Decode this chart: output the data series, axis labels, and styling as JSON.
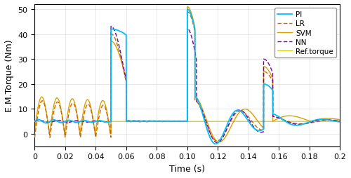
{
  "title": "",
  "xlabel": "Time (s)",
  "ylabel": "E.M.Torque (Nm)",
  "xlim": [
    0,
    0.2
  ],
  "ylim": [
    -5,
    52
  ],
  "yticks": [
    0,
    10,
    20,
    30,
    40,
    50
  ],
  "xticks": [
    0,
    0.02,
    0.04,
    0.06,
    0.08,
    0.1,
    0.12,
    0.14,
    0.16,
    0.18,
    0.2
  ],
  "colors": {
    "PI": "#00BFFF",
    "LR": "#CC6600",
    "SVM": "#DAA000",
    "NN": "#7B00A0",
    "Ref": "#C8C800"
  },
  "steady_torque": 5.0,
  "figsize": [
    5.0,
    2.55
  ],
  "dpi": 100
}
